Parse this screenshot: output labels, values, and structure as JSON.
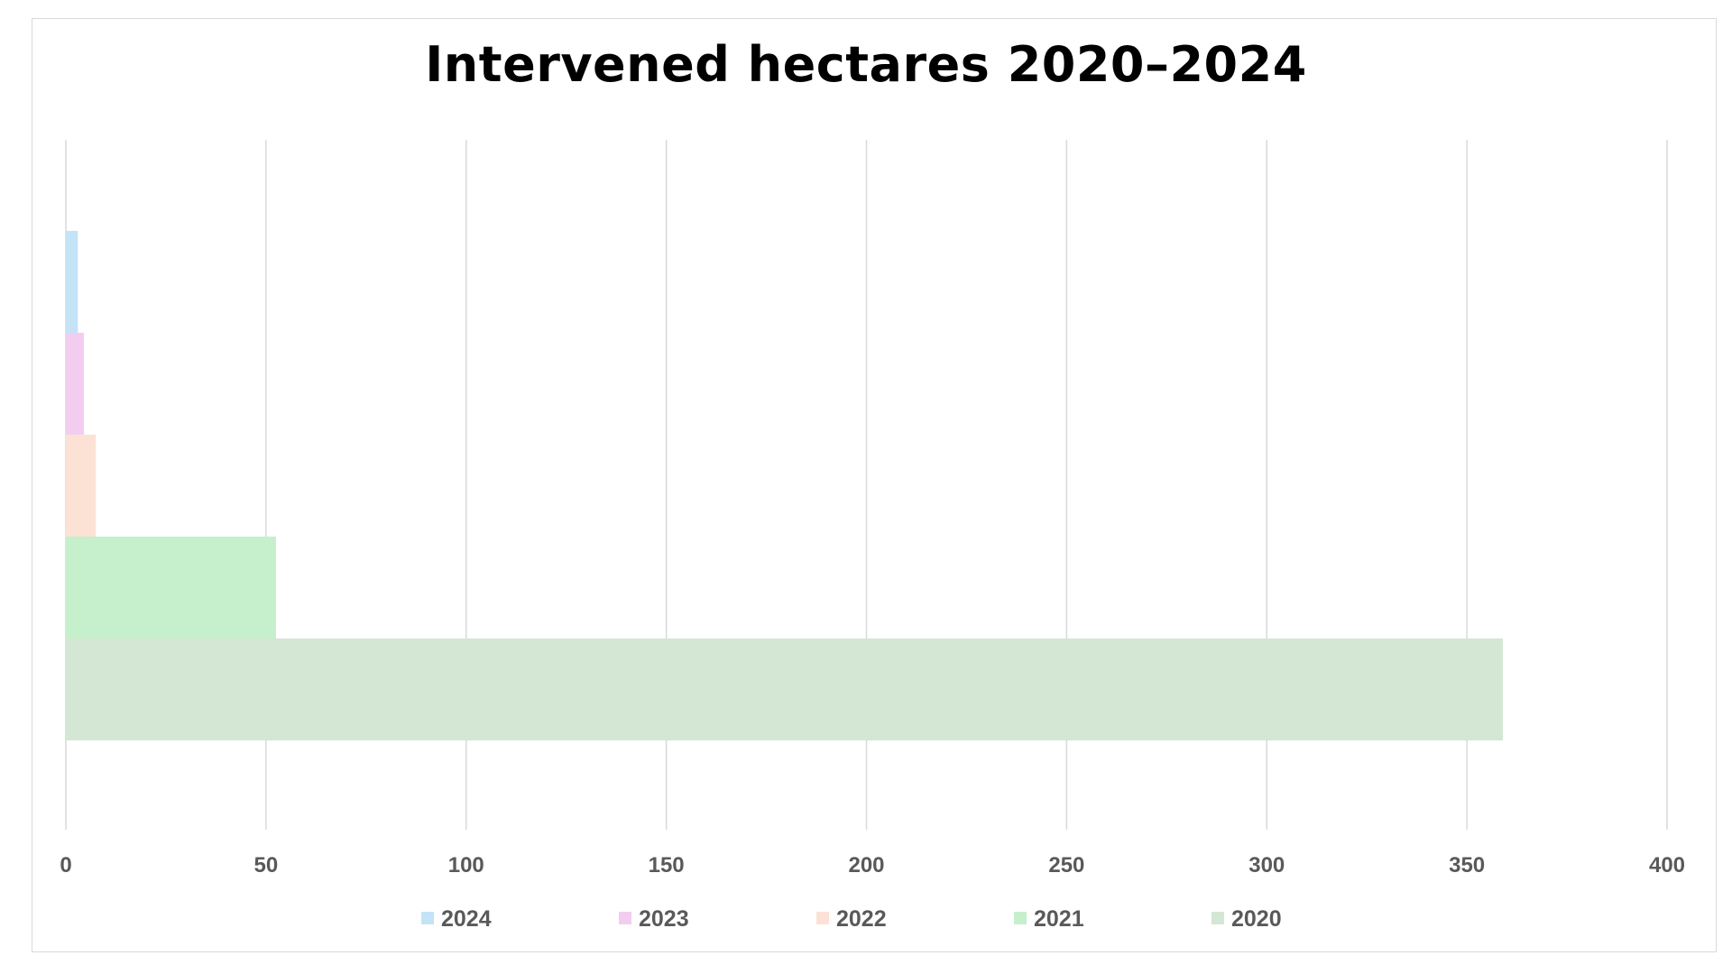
{
  "chart_data": {
    "type": "bar",
    "orientation": "horizontal",
    "title": "Intervened hectares 2020–2024",
    "xlabel": "",
    "ylabel": "",
    "xlim": [
      0,
      400
    ],
    "x_ticks": [
      "0",
      "50",
      "100",
      "150",
      "200",
      "250",
      "300",
      "350",
      "400"
    ],
    "grid": "vertical",
    "legend_position": "bottom",
    "series": [
      {
        "name": "2024",
        "value": 3,
        "color": "#c5e3f6"
      },
      {
        "name": "2023",
        "value": 4.5,
        "color": "#f3cdf0"
      },
      {
        "name": "2022",
        "value": 7.5,
        "color": "#fce2d5"
      },
      {
        "name": "2021",
        "value": 52.5,
        "color": "#c5f0cb"
      },
      {
        "name": "2020",
        "value": 359,
        "color": "#d4e6d4"
      }
    ]
  }
}
